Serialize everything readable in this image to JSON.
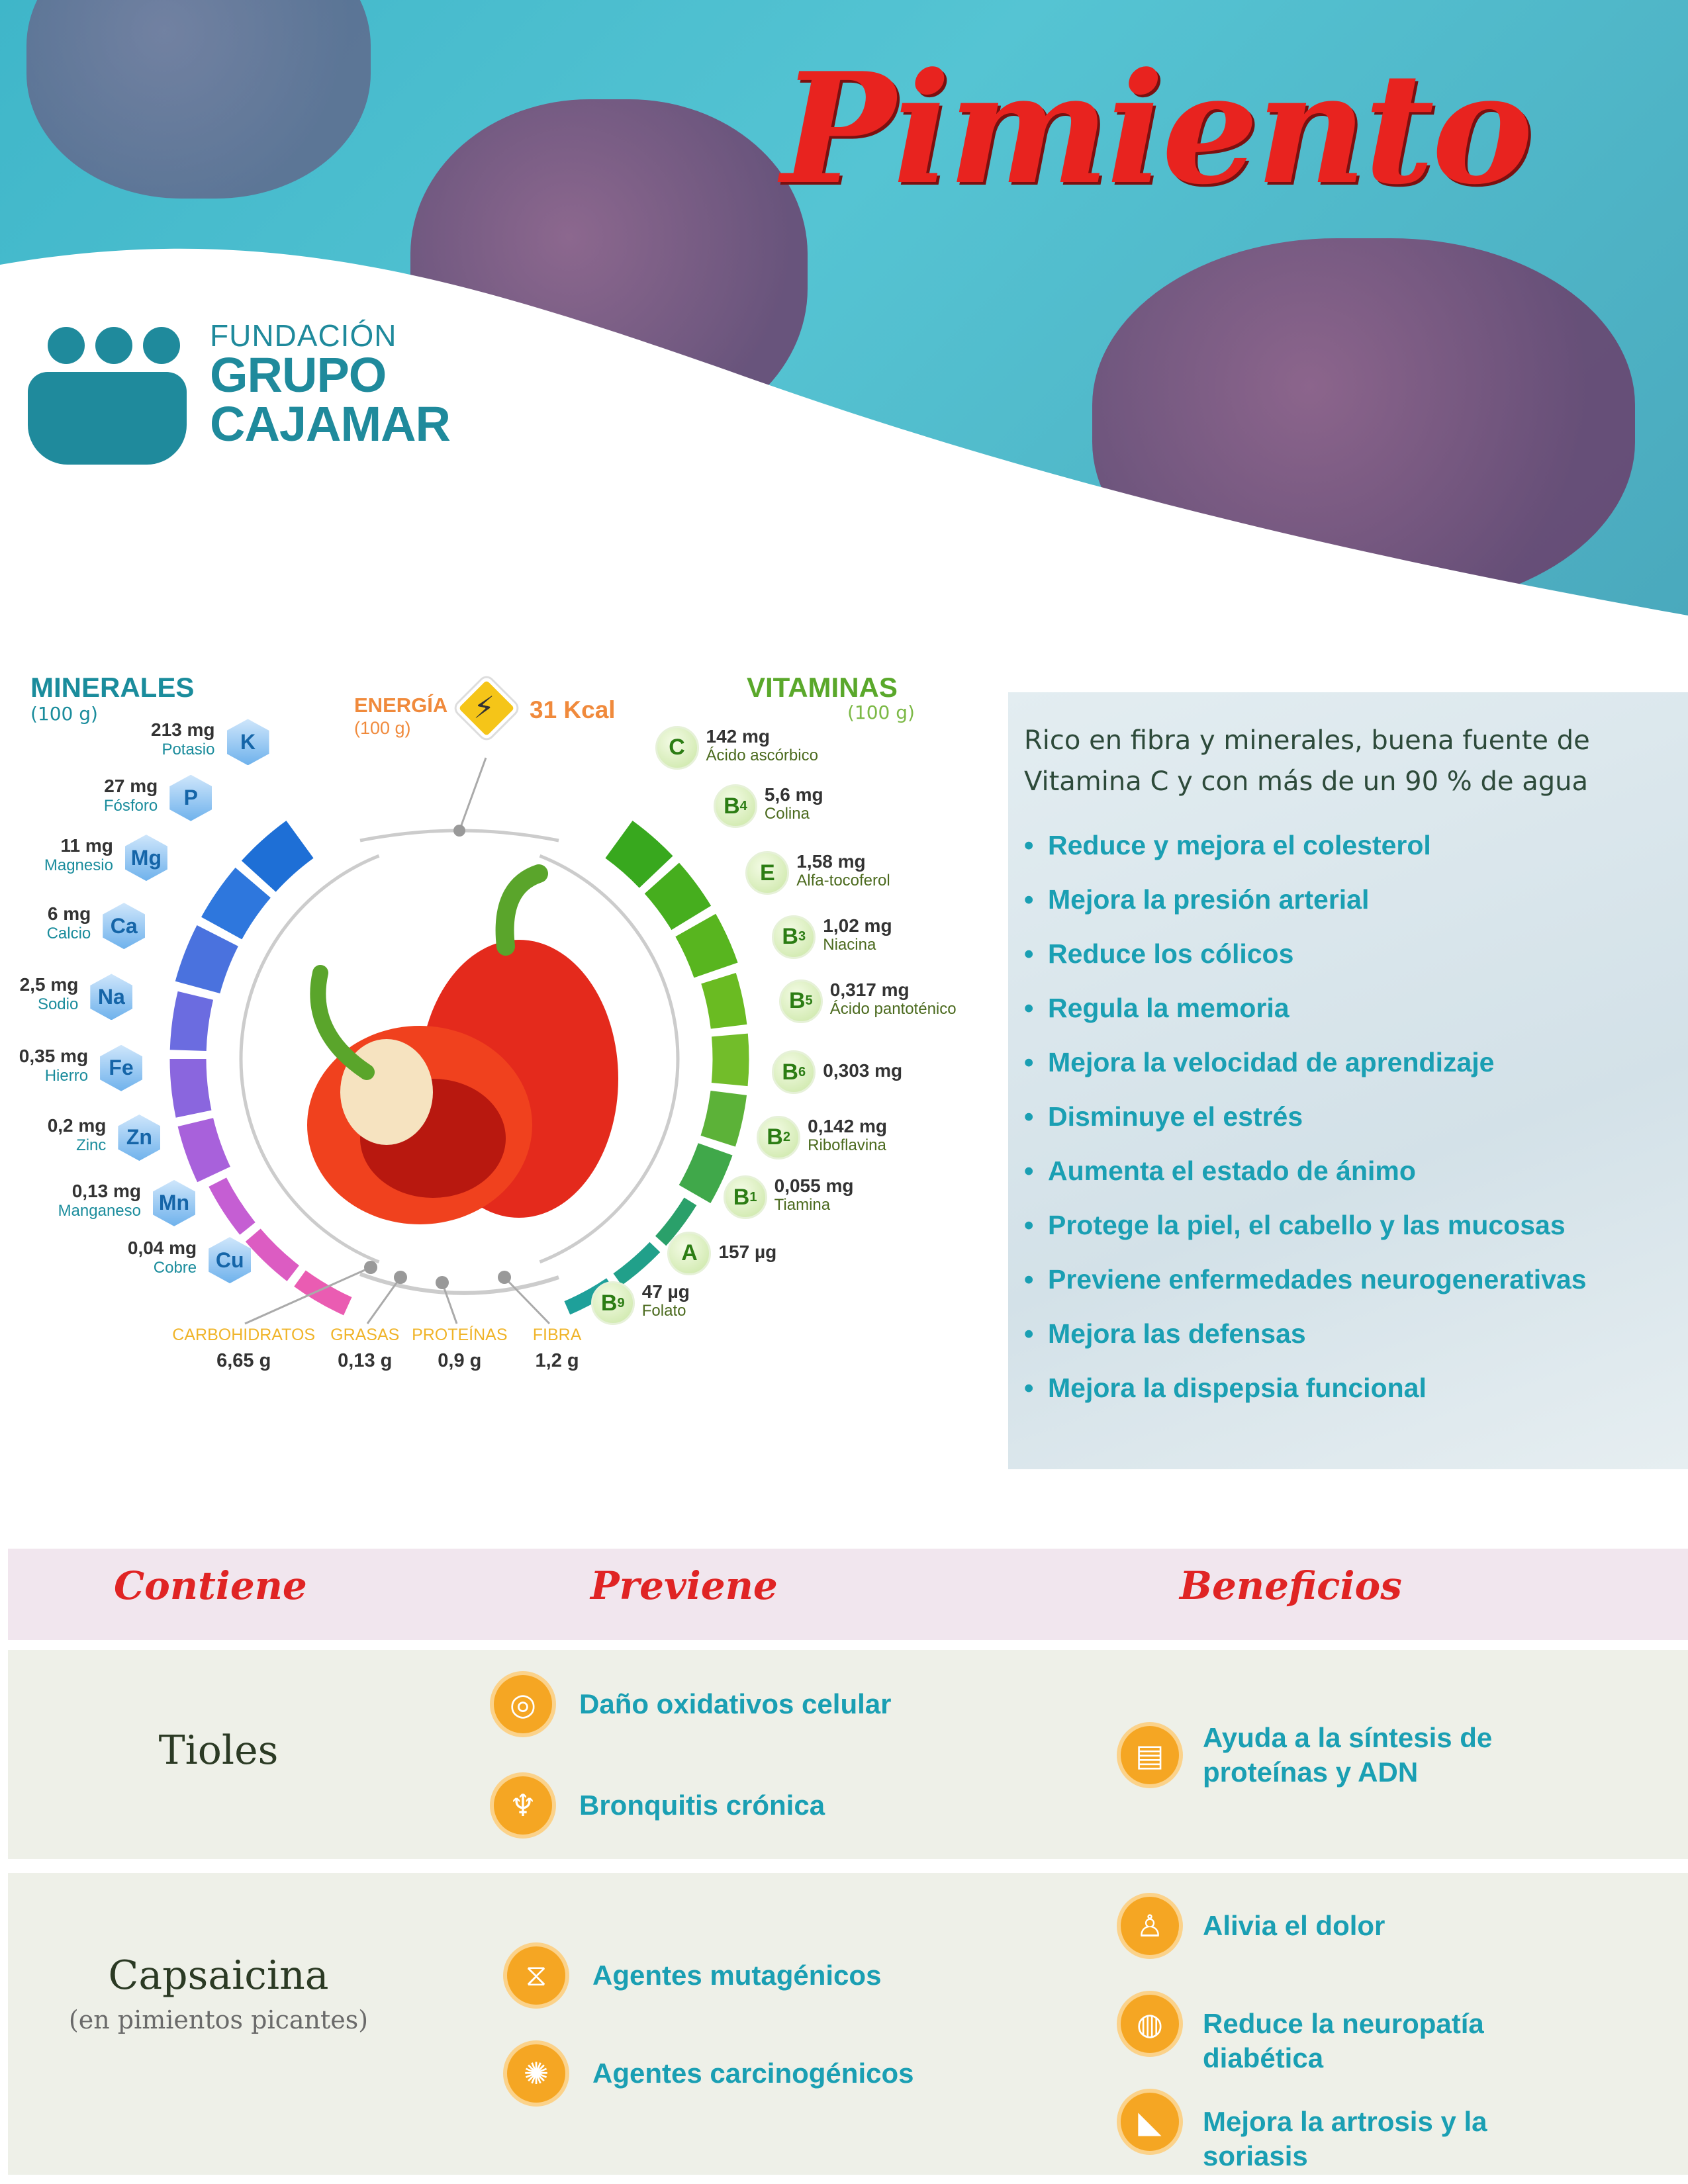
{
  "header": {
    "title": "Pimiento"
  },
  "logo": {
    "line1": "FUNDACIÓN",
    "line2": "GRUPO",
    "line3": "CAJAMAR"
  },
  "minerals": {
    "title": "MINERALES",
    "subtitle": "(100 g)",
    "items": [
      {
        "symbol": "K",
        "value": "213 mg",
        "name": "Potasio"
      },
      {
        "symbol": "P",
        "value": "27 mg",
        "name": "Fósforo"
      },
      {
        "symbol": "Mg",
        "value": "11 mg",
        "name": "Magnesio"
      },
      {
        "symbol": "Ca",
        "value": "6 mg",
        "name": "Calcio"
      },
      {
        "symbol": "Na",
        "value": "2,5 mg",
        "name": "Sodio"
      },
      {
        "symbol": "Fe",
        "value": "0,35 mg",
        "name": "Hierro"
      },
      {
        "symbol": "Zn",
        "value": "0,2 mg",
        "name": "Zinc"
      },
      {
        "symbol": "Mn",
        "value": "0,13 mg",
        "name": "Manganeso"
      },
      {
        "symbol": "Cu",
        "value": "0,04 mg",
        "name": "Cobre"
      }
    ]
  },
  "energy": {
    "label": "ENERGÍA",
    "subtitle": "(100 g)",
    "value": "31 Kcal",
    "icon": "lightning-icon"
  },
  "vitamins": {
    "title": "VITAMINAS",
    "subtitle": "(100 g)",
    "items": [
      {
        "symbol": "C",
        "sub": "",
        "value": "142 mg",
        "name": "Ácido ascórbico"
      },
      {
        "symbol": "B",
        "sub": "4",
        "value": "5,6 mg",
        "name": "Colina"
      },
      {
        "symbol": "E",
        "sub": "",
        "value": "1,58 mg",
        "name": "Alfa-tocoferol"
      },
      {
        "symbol": "B",
        "sub": "3",
        "value": "1,02 mg",
        "name": "Niacina"
      },
      {
        "symbol": "B",
        "sub": "5",
        "value": "0,317 mg",
        "name": "Ácido pantoténico"
      },
      {
        "symbol": "B",
        "sub": "6",
        "value": "0,303 mg",
        "name": ""
      },
      {
        "symbol": "B",
        "sub": "2",
        "value": "0,142 mg",
        "name": "Riboflavina"
      },
      {
        "symbol": "B",
        "sub": "1",
        "value": "0,055 mg",
        "name": "Tiamina"
      },
      {
        "symbol": "A",
        "sub": "",
        "value": "157 µg",
        "name": ""
      },
      {
        "symbol": "B",
        "sub": "9",
        "value": "47 µg",
        "name": "Folato"
      }
    ]
  },
  "macros": [
    {
      "name": "CARBOHIDRATOS",
      "value": "6,65 g"
    },
    {
      "name": "GRASAS",
      "value": "0,13 g"
    },
    {
      "name": "PROTEÍNAS",
      "value": "0,9 g"
    },
    {
      "name": "FIBRA",
      "value": "1,2 g"
    }
  ],
  "panel": {
    "intro": "Rico en fibra y minerales, buena fuente de Vitamina C y con más de un 90 % de agua",
    "benefits": [
      "Reduce y mejora el colesterol",
      "Mejora la presión arterial",
      "Reduce los cólicos",
      "Regula la memoria",
      "Mejora la velocidad de aprendizaje",
      "Disminuye el estrés",
      "Aumenta el estado de ánimo",
      "Protege la piel, el cabello y las mucosas",
      "Previene enfermedades neurogenerativas",
      "Mejora las defensas",
      "Mejora la dispepsia funcional"
    ]
  },
  "table": {
    "headers": [
      "Contiene",
      "Previene",
      "Beneficios"
    ],
    "rows": [
      {
        "name": "Tioles",
        "note": "",
        "previene": [
          {
            "text": "Daño oxidativos celular",
            "icon": "cell-icon"
          },
          {
            "text": "Bronquitis crónica",
            "icon": "lungs-icon"
          }
        ],
        "beneficios": [
          {
            "text": "Ayuda a la síntesis de proteínas y ADN",
            "icon": "dna-card-icon"
          }
        ]
      },
      {
        "name": "Capsaicina",
        "note": "(en pimientos picantes)",
        "previene": [
          {
            "text": "Agentes mutagénicos",
            "icon": "dna-icon"
          },
          {
            "text": "Agentes carcinogénicos",
            "icon": "virus-icon"
          }
        ],
        "beneficios": [
          {
            "text": "Alivia el dolor",
            "icon": "body-pain-icon"
          },
          {
            "text": "Reduce la neuropatía diabética",
            "icon": "glucose-icon"
          },
          {
            "text": "Mejora la artrosis y la soriasis",
            "icon": "joint-icon"
          }
        ]
      }
    ]
  },
  "colors": {
    "title": "#e8231f",
    "brand": "#1f8a9c",
    "accent": "#1a9fb3",
    "icon": "#f5a623"
  }
}
